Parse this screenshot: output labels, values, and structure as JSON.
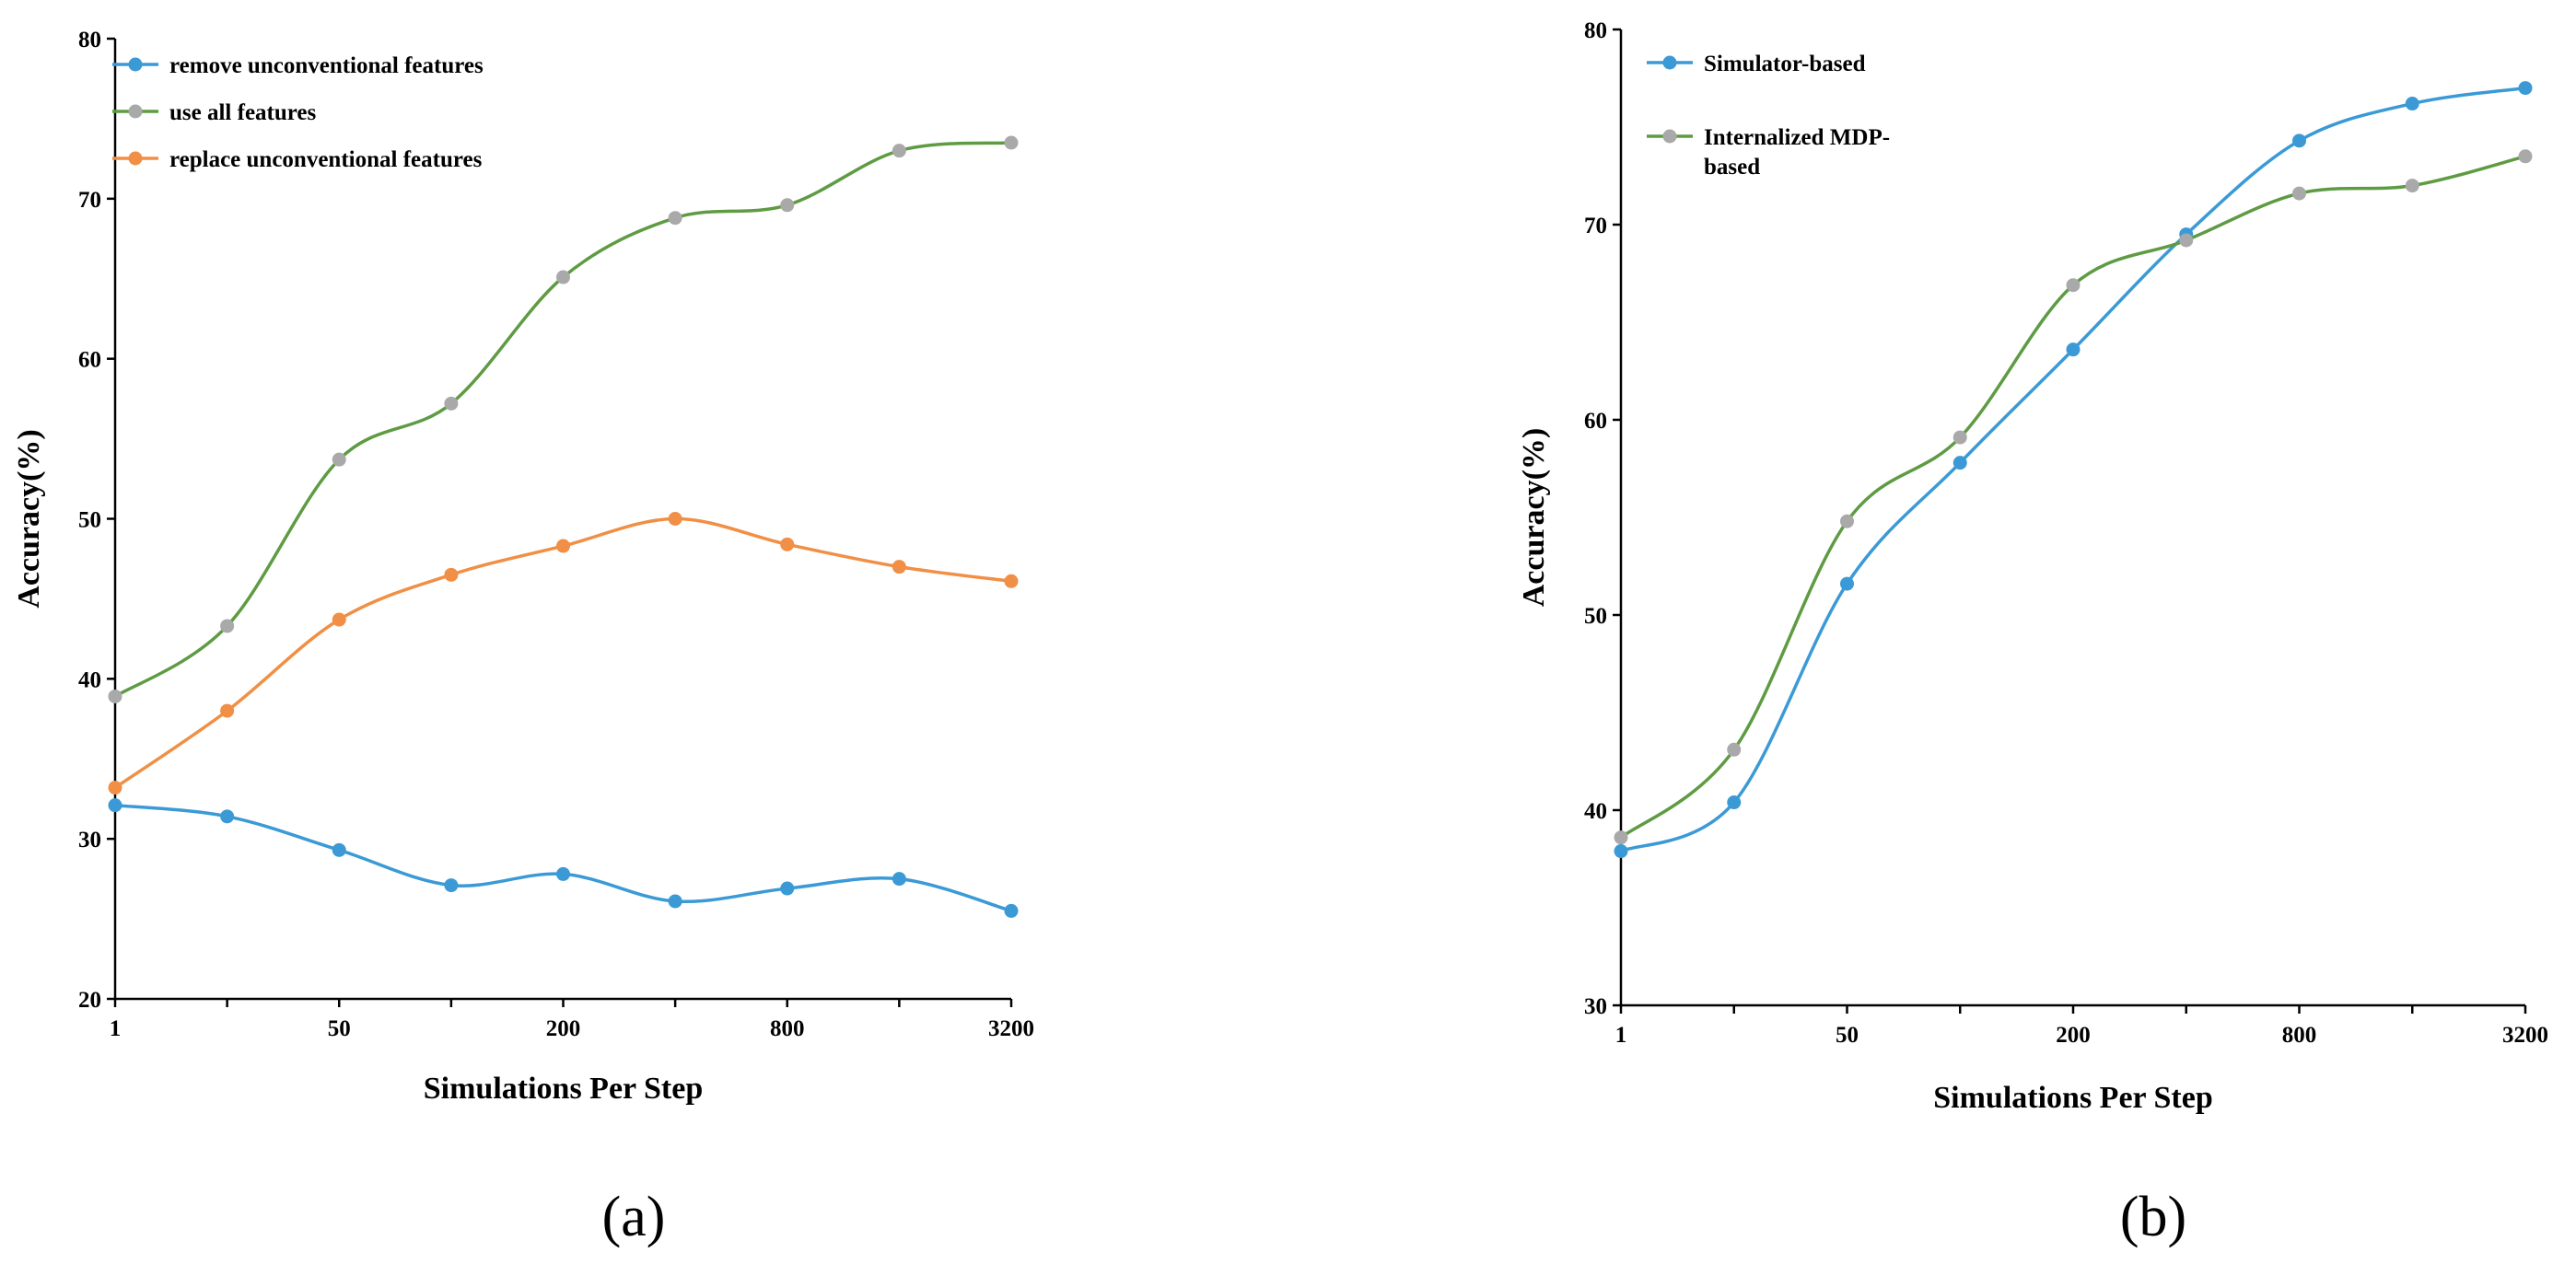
{
  "chart_data": [
    {
      "type": "line",
      "panel_label": "(a)",
      "xlabel": "Simulations Per Step",
      "ylabel": "Accuracy(%)",
      "x_positions": [
        0,
        1,
        2,
        3,
        4,
        5,
        6,
        7,
        8
      ],
      "x_tick_labels": [
        "1",
        "",
        "50",
        "",
        "200",
        "",
        "800",
        "",
        "3200"
      ],
      "ylim": [
        20,
        80
      ],
      "y_ticks": [
        20,
        30,
        40,
        50,
        60,
        70,
        80
      ],
      "grid": false,
      "legend_position": "top-left",
      "series": [
        {
          "name": "remove unconventional features",
          "color": "#3b9ad6",
          "values": [
            32.1,
            31.4,
            29.3,
            27.1,
            27.8,
            26.1,
            26.9,
            27.5,
            25.5
          ]
        },
        {
          "name": "use all features",
          "color": "#5e9b43",
          "marker_color": "#a9a9a9",
          "values": [
            38.9,
            43.3,
            53.7,
            57.2,
            65.1,
            68.8,
            69.6,
            73.0,
            73.5
          ]
        },
        {
          "name": "replace unconventional features",
          "color": "#f08f45",
          "values": [
            33.2,
            38.0,
            43.7,
            46.5,
            48.3,
            50.0,
            48.4,
            47.0,
            46.1
          ]
        }
      ]
    },
    {
      "type": "line",
      "panel_label": "(b)",
      "xlabel": "Simulations Per Step",
      "ylabel": "Accuracy(%)",
      "x_positions": [
        0,
        1,
        2,
        3,
        4,
        5,
        6,
        7,
        8
      ],
      "x_tick_labels": [
        "1",
        "",
        "50",
        "",
        "200",
        "",
        "800",
        "",
        "3200"
      ],
      "ylim": [
        30,
        80
      ],
      "y_ticks": [
        30,
        40,
        50,
        60,
        70,
        80
      ],
      "grid": false,
      "legend_position": "top-left",
      "series": [
        {
          "name": "Simulator-based",
          "color": "#3b9ad6",
          "values": [
            37.9,
            40.4,
            51.6,
            57.8,
            63.6,
            69.5,
            74.3,
            76.2,
            77.0
          ]
        },
        {
          "name": "Internalized MDP-based",
          "name_lines": [
            "Internalized MDP-",
            "based"
          ],
          "color": "#5e9b43",
          "marker_color": "#a9a9a9",
          "values": [
            38.6,
            43.1,
            54.8,
            59.1,
            66.9,
            69.2,
            71.6,
            72.0,
            73.5
          ]
        }
      ]
    }
  ]
}
